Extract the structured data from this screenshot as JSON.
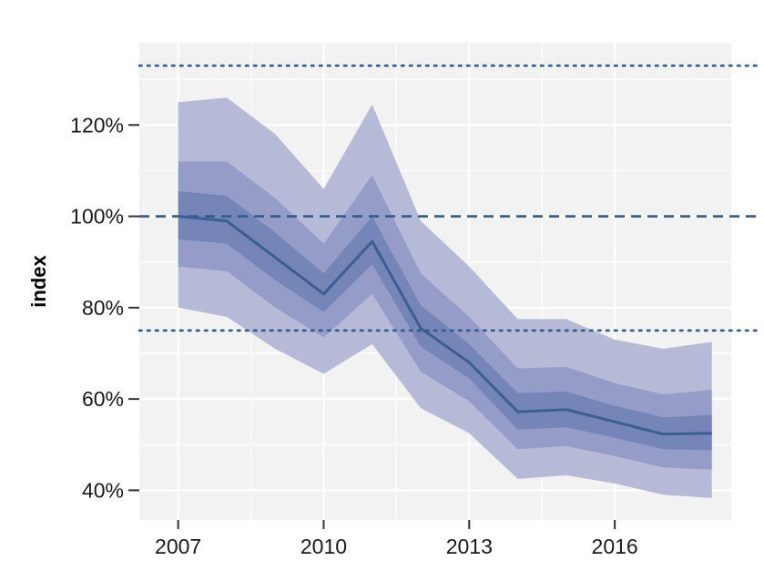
{
  "chart_data": {
    "type": "line",
    "title": "",
    "xlabel": "",
    "ylabel": "index",
    "x": [
      2007,
      2008,
      2009,
      2010,
      2011,
      2012,
      2013,
      2014,
      2015,
      2016,
      2017,
      2018
    ],
    "series": [
      {
        "values": [
          1.0,
          0.99,
          0.91,
          0.83,
          0.945,
          0.755,
          0.68,
          0.572,
          0.577,
          0.55,
          0.523,
          0.525
        ]
      }
    ],
    "bands": [
      {
        "lower": [
          0.8,
          0.78,
          0.71,
          0.655,
          0.72,
          0.58,
          0.525,
          0.425,
          0.433,
          0.415,
          0.39,
          0.383
        ],
        "upper": [
          1.25,
          1.26,
          1.18,
          1.06,
          1.245,
          0.99,
          0.89,
          0.775,
          0.775,
          0.73,
          0.71,
          0.725
        ],
        "color": "#b6bad7"
      },
      {
        "lower": [
          0.89,
          0.88,
          0.8,
          0.735,
          0.83,
          0.66,
          0.595,
          0.49,
          0.497,
          0.475,
          0.45,
          0.445
        ],
        "upper": [
          1.12,
          1.12,
          1.04,
          0.94,
          1.09,
          0.875,
          0.78,
          0.667,
          0.67,
          0.635,
          0.61,
          0.62
        ],
        "color": "#959cc8"
      },
      {
        "lower": [
          0.95,
          0.94,
          0.86,
          0.79,
          0.895,
          0.715,
          0.645,
          0.533,
          0.538,
          0.515,
          0.49,
          0.488
        ],
        "upper": [
          1.055,
          1.045,
          0.965,
          0.875,
          1.0,
          0.805,
          0.72,
          0.613,
          0.616,
          0.585,
          0.56,
          0.565
        ],
        "color": "#7585b8"
      }
    ],
    "reference_lines": [
      {
        "y": 1.33,
        "style": "dotted"
      },
      {
        "y": 1.0,
        "style": "dashed"
      },
      {
        "y": 0.75,
        "style": "dotted"
      }
    ],
    "xlim": [
      2006.2,
      2018.4
    ],
    "ylim": [
      0.335,
      1.38
    ],
    "x_ticks": [
      2007,
      2010,
      2013,
      2016
    ],
    "x_tick_labels": [
      "2007",
      "2010",
      "2013",
      "2016"
    ],
    "y_ticks": [
      0.4,
      0.6,
      0.8,
      1.0,
      1.2
    ],
    "y_tick_labels": [
      "40%",
      "60%",
      "80%",
      "100%",
      "120%"
    ],
    "grid": true,
    "colors": {
      "line": "#3a5f92",
      "reference": "#2f5d8e",
      "panel_background": "#f2f2f2",
      "grid": "#ffffff"
    }
  }
}
